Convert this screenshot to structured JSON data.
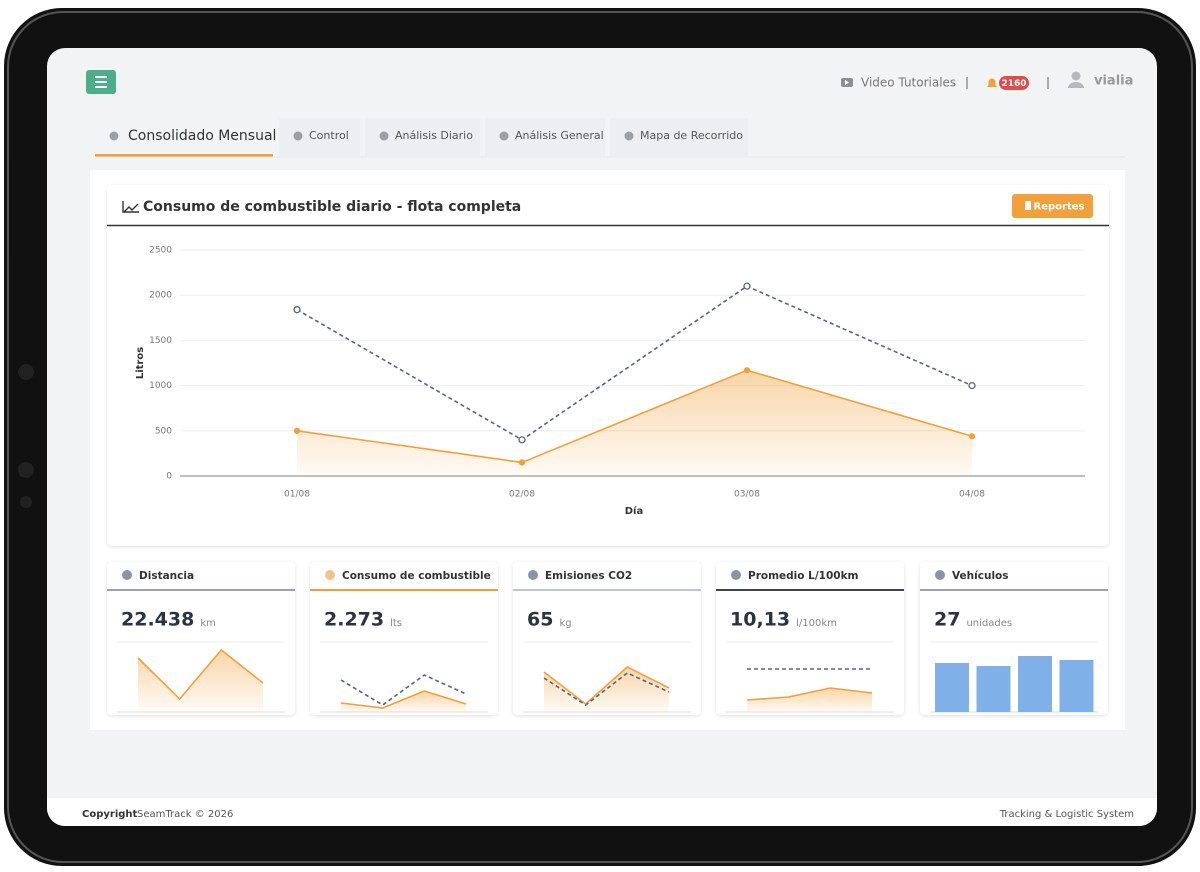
{
  "header": {
    "video_tutorials": "Video Tutoriales",
    "notifications": 2160,
    "user": "vialia"
  },
  "tabs": [
    "Consolidado Mensual",
    "Control",
    "Análisis Diario",
    "Análisis General",
    "Mapa de Recorrido"
  ],
  "panel": {
    "title": "Consumo de combustible diario - flota completa",
    "button": "Reportes"
  },
  "chart_data": {
    "type": "line",
    "categories": [
      "01/08",
      "02/08",
      "03/08",
      "04/08"
    ],
    "series": [
      {
        "color": "#56657f",
        "dashed": true,
        "values": [
          1840,
          400,
          2100,
          1000
        ]
      },
      {
        "color": "#f0a13c",
        "area": true,
        "values": [
          500,
          150,
          1170,
          440
        ]
      }
    ],
    "xlabel": "Día",
    "ylabel": "Litros",
    "ylim": [
      0,
      2500
    ],
    "yticks": [
      0,
      500,
      1000,
      1500,
      2000,
      2500
    ],
    "grid": true
  },
  "cards": [
    {
      "title": "Distancia",
      "value": "22.438",
      "unit": "km",
      "accent": "#9aa3ad",
      "spark": {
        "type": "line",
        "series": [
          {
            "color": "#f0a13c",
            "area": true,
            "values": [
              54,
              13,
              62,
              29
            ]
          }
        ]
      }
    },
    {
      "title": "Consumo de combustible",
      "value": "2.273",
      "unit": "lts",
      "accent": "#f0a13c",
      "spark": {
        "type": "line",
        "series": [
          {
            "color": "#56657f",
            "dashed": true,
            "values": [
              32,
              7,
              37,
              18
            ]
          },
          {
            "color": "#f0a13c",
            "area": true,
            "values": [
              9,
              4,
              21,
              8
            ]
          }
        ]
      }
    },
    {
      "title": "Emisiones CO2",
      "value": "65",
      "unit": "kg",
      "accent": "#b9c7d8",
      "spark": {
        "type": "line",
        "series": [
          {
            "color": "#f0a13c",
            "area": true,
            "values": [
              40,
              8,
              45,
              24
            ]
          },
          {
            "color": "#56657f",
            "dashed": true,
            "values": [
              34,
              7,
              39,
              20
            ]
          }
        ]
      }
    },
    {
      "title": "Promedio L/100km",
      "value": "10,13",
      "unit": "l/100km",
      "accent": "#3d4452",
      "spark": {
        "type": "line",
        "series": [
          {
            "color": "#56657f",
            "dashed": true,
            "values": [
              43,
              43,
              43,
              43
            ]
          },
          {
            "color": "#f0a13c",
            "area": true,
            "values": [
              12,
              15,
              24,
              19
            ]
          }
        ]
      }
    },
    {
      "title": "Vehículos",
      "value": "27",
      "unit": "unidades",
      "accent": "#9aa3ad",
      "spark": {
        "type": "bar",
        "color": "#7fb1e8",
        "values": [
          49,
          46,
          56,
          52
        ]
      }
    }
  ],
  "footer": {
    "copyright": "Copyright",
    "brand": "SeamTrack © 2026",
    "system": "Tracking & Logistic System"
  }
}
